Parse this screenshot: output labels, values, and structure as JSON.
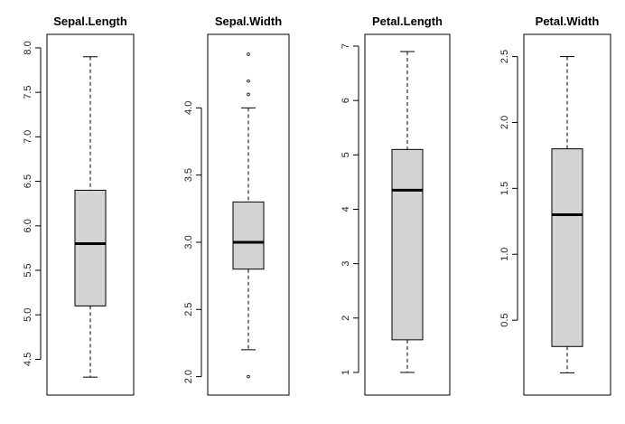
{
  "colors": {
    "box_fill": "#d3d3d3",
    "line": "#000000",
    "background": "#ffffff"
  },
  "chart_data": [
    {
      "type": "boxplot",
      "title": "Sepal.Length",
      "ylim": [
        4.2,
        8.05
      ],
      "ticks": [
        "4.5",
        "5.0",
        "5.5",
        "6.0",
        "6.5",
        "7.0",
        "7.5",
        "8.0"
      ],
      "stats": {
        "whisker_low": 4.3,
        "q1": 5.1,
        "median": 5.8,
        "q3": 6.4,
        "whisker_high": 7.9
      },
      "outliers": []
    },
    {
      "type": "boxplot",
      "title": "Sepal.Width",
      "ylim": [
        1.93,
        4.48
      ],
      "ticks": [
        "2.0",
        "2.5",
        "3.0",
        "3.5",
        "4.0"
      ],
      "stats": {
        "whisker_low": 2.2,
        "q1": 2.8,
        "median": 3.0,
        "q3": 3.3,
        "whisker_high": 4.0
      },
      "outliers": [
        2.0,
        4.1,
        4.2,
        4.4
      ]
    },
    {
      "type": "boxplot",
      "title": "Petal.Length",
      "ylim": [
        0.75,
        7.05
      ],
      "ticks": [
        "1",
        "2",
        "3",
        "4",
        "5",
        "6",
        "7"
      ],
      "stats": {
        "whisker_low": 1.0,
        "q1": 1.6,
        "median": 4.35,
        "q3": 5.1,
        "whisker_high": 6.9
      },
      "outliers": []
    },
    {
      "type": "boxplot",
      "title": "Petal.Width",
      "ylim": [
        0.0,
        2.6
      ],
      "ticks": [
        "0.5",
        "1.0",
        "1.5",
        "2.0",
        "2.5"
      ],
      "stats": {
        "whisker_low": 0.1,
        "q1": 0.3,
        "median": 1.3,
        "q3": 1.8,
        "whisker_high": 2.5
      },
      "outliers": []
    }
  ]
}
